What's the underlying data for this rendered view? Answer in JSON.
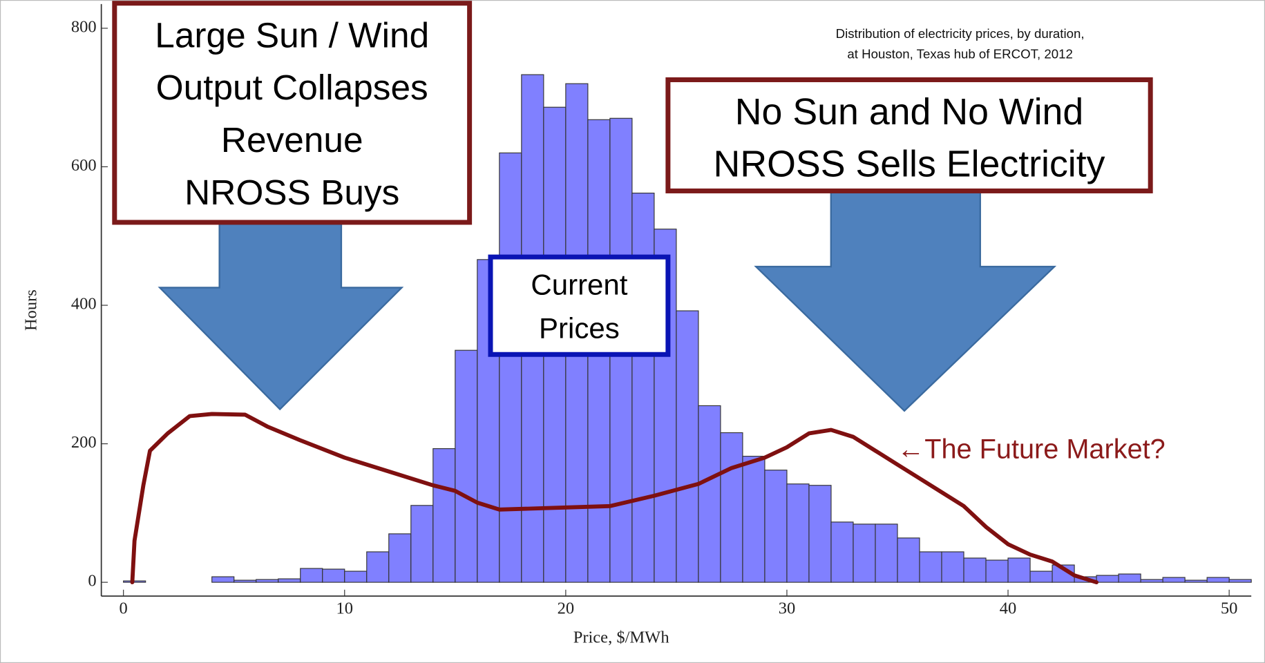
{
  "chart_data": {
    "type": "histogram",
    "title": [
      "Distribution of electricity prices, by duration,",
      "at Houston, Texas hub of ERCOT, 2012"
    ],
    "x_label": "Price, $/MWh",
    "y_label": "Hours",
    "bins": [
      0,
      1,
      2,
      3,
      4,
      5,
      6,
      7,
      8,
      9,
      10,
      11,
      12,
      13,
      14,
      15,
      16,
      17,
      18,
      19,
      20,
      21,
      22,
      23,
      24,
      25,
      26,
      27,
      28,
      29,
      30,
      31,
      32,
      33,
      34,
      35,
      36,
      37,
      38,
      39,
      40,
      41,
      42,
      43,
      44,
      45,
      46,
      47,
      48,
      49,
      50,
      51
    ],
    "values": [
      2,
      0,
      0,
      0,
      8,
      3,
      4,
      5,
      20,
      19,
      16,
      44,
      70,
      111,
      193,
      335,
      466,
      620,
      733,
      686,
      720,
      668,
      670,
      562,
      510,
      392,
      255,
      216,
      182,
      162,
      142,
      140,
      87,
      84,
      84,
      64,
      44,
      44,
      35,
      32,
      35,
      16,
      25,
      8,
      10,
      12,
      4,
      7,
      3,
      7,
      4
    ],
    "color": "#8080ff",
    "xlim": [
      -1,
      51
    ],
    "ylim": [
      -20,
      835
    ],
    "xticks": [
      0,
      10,
      20,
      30,
      40,
      50
    ],
    "yticks": [
      0,
      200,
      400,
      600,
      800
    ],
    "future_curve": {
      "color": "#7f1010",
      "x": [
        0.4,
        0.5,
        0.9,
        1.2,
        2,
        3,
        4,
        5.5,
        6.5,
        8,
        10,
        12,
        14,
        15,
        16,
        17,
        20,
        22,
        24,
        26,
        27.5,
        29,
        30,
        31,
        32,
        33,
        34,
        35,
        36,
        37,
        38,
        39,
        40,
        41,
        42,
        43,
        44
      ],
      "values": [
        0,
        60,
        140,
        190,
        215,
        240,
        243,
        242,
        225,
        205,
        180,
        160,
        140,
        132,
        115,
        105,
        108,
        110,
        125,
        142,
        165,
        180,
        195,
        215,
        220,
        210,
        190,
        170,
        150,
        130,
        110,
        80,
        55,
        40,
        30,
        10,
        0
      ]
    },
    "note": "←The Future Market?",
    "annotations": [
      {
        "lines": [
          "Large Sun / Wind",
          "Output Collapses",
          "Revenue",
          "NROSS Buys"
        ]
      },
      {
        "lines": [
          "No Sun and No Wind",
          "NROSS Sells Electricity"
        ]
      },
      {
        "lines": [
          "Current",
          "Prices"
        ]
      }
    ]
  }
}
